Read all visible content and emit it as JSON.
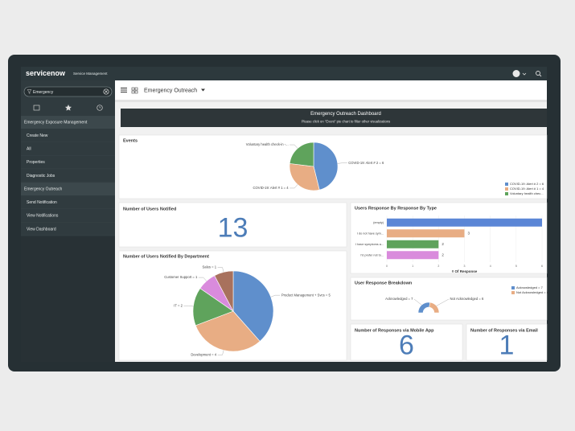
{
  "header": {
    "logo": "servicenow",
    "product": "Service Management"
  },
  "nav": {
    "filter": "Emergency",
    "sections": [
      {
        "title": "Emergency Exposure Management",
        "items": [
          "Create New",
          "All",
          "Properties",
          "Diagnostic Jobs"
        ]
      },
      {
        "title": "Emergency Outreach",
        "items": [
          "Send Notification",
          "View Notifications",
          "View Dashboard"
        ]
      }
    ]
  },
  "toolbar": {
    "title": "Emergency Outreach"
  },
  "dashboard": {
    "title": "Emergency Outreach Dashboard",
    "subtitle": "Please click on \"Event\" pie chart to filter other visualizations"
  },
  "scores": [
    {
      "title": "Number of Users Notified",
      "value": 13
    },
    {
      "title": "Number of Responses via Mobile App",
      "value": 6
    },
    {
      "title": "Number of Responses via Email",
      "value": 1
    }
  ],
  "chart_data": [
    {
      "type": "pie",
      "title": "Events",
      "categories": [
        "COVID-19: Alert # 2 = 6",
        "COVID-19: Alert # 1 = 4",
        "Voluntary health check-in -..."
      ],
      "values": [
        6,
        4,
        3
      ],
      "colors": [
        "#5f8fcc",
        "#e8ad84",
        "#5fa35c"
      ],
      "legend": [
        "COVID-19: Alert # 2 = 6",
        "COVID-19: Alert # 1 = 4",
        "Voluntary health chec..."
      ]
    },
    {
      "type": "hbar",
      "title": "Users Response By Response By Type",
      "categories": [
        "(empty)",
        "I do not have sym...",
        "I have symptoms a...",
        "I'd prefer not to..."
      ],
      "values": [
        6,
        3,
        2,
        2
      ],
      "colors": [
        "#5b86d6",
        "#e8ad84",
        "#5fa35c",
        "#d98bdc"
      ],
      "xlim": [
        0,
        6
      ],
      "xticks": [
        0,
        1,
        2,
        3,
        4,
        5,
        6
      ],
      "xlabel": "# Of Response"
    },
    {
      "type": "pie",
      "title": "Number of Users Notified By Department",
      "categories": [
        "Product Management + Svcs = 5",
        "Development = 4",
        "IT = 2",
        "Customer Support = 1",
        "Sales = 1"
      ],
      "values": [
        5,
        4,
        2,
        1,
        1
      ],
      "colors": [
        "#5f8fcc",
        "#e8ad84",
        "#5fa35c",
        "#d98bdc",
        "#a8715d"
      ]
    },
    {
      "type": "donut",
      "title": "User Response Breakdown",
      "categories": [
        "Acknowledged = 7",
        "Not Acknowledged = 6"
      ],
      "values": [
        7,
        6
      ],
      "colors": [
        "#5f8fcc",
        "#e8ad84"
      ],
      "legend": [
        "Acknowledged = 7",
        "Not Acknowledged = 6"
      ]
    }
  ]
}
